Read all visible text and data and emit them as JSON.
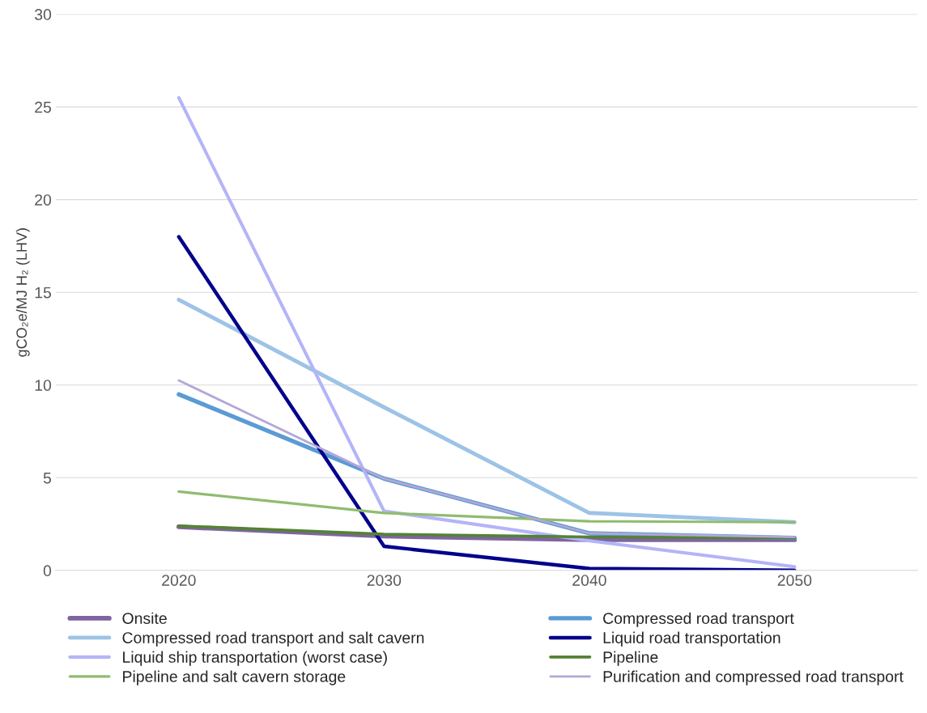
{
  "chart_data": {
    "type": "line",
    "ylabel": "gCO₂e/MJ H₂ (LHV)",
    "categories": [
      "2020",
      "2030",
      "2040",
      "2050"
    ],
    "ylim": [
      0,
      30
    ],
    "yticks": [
      0,
      5,
      10,
      15,
      20,
      25,
      30
    ],
    "grid": "y",
    "legend": "bottom",
    "marker": "none",
    "line_style": "solid",
    "series": [
      {
        "name": "Onsite",
        "color": "#8064a2",
        "values": [
          2.35,
          1.85,
          1.65,
          1.65
        ]
      },
      {
        "name": "Compressed road transport",
        "color": "#5b9bd5",
        "values": [
          9.5,
          4.95,
          2.0,
          1.75
        ]
      },
      {
        "name": "Compressed road transport and salt cavern",
        "color": "#9dc3e6",
        "values": [
          14.6,
          8.8,
          3.1,
          2.6
        ]
      },
      {
        "name": "Liquid road transportation",
        "color": "#00008b",
        "values": [
          18.0,
          1.3,
          0.1,
          0.0
        ]
      },
      {
        "name": "Liquid ship transportation (worst case)",
        "color": "#b4b4f8",
        "values": [
          25.5,
          3.2,
          1.6,
          0.2
        ]
      },
      {
        "name": "Pipeline",
        "color": "#548235",
        "values": [
          2.4,
          1.95,
          1.8,
          1.75
        ]
      },
      {
        "name": "Pipeline and salt cavern storage",
        "color": "#8fbc6f",
        "values": [
          4.25,
          3.1,
          2.65,
          2.6
        ]
      },
      {
        "name": "Purification and compressed road transport",
        "color": "#b4a7d6",
        "values": [
          10.25,
          4.95,
          2.0,
          1.8
        ]
      }
    ]
  }
}
